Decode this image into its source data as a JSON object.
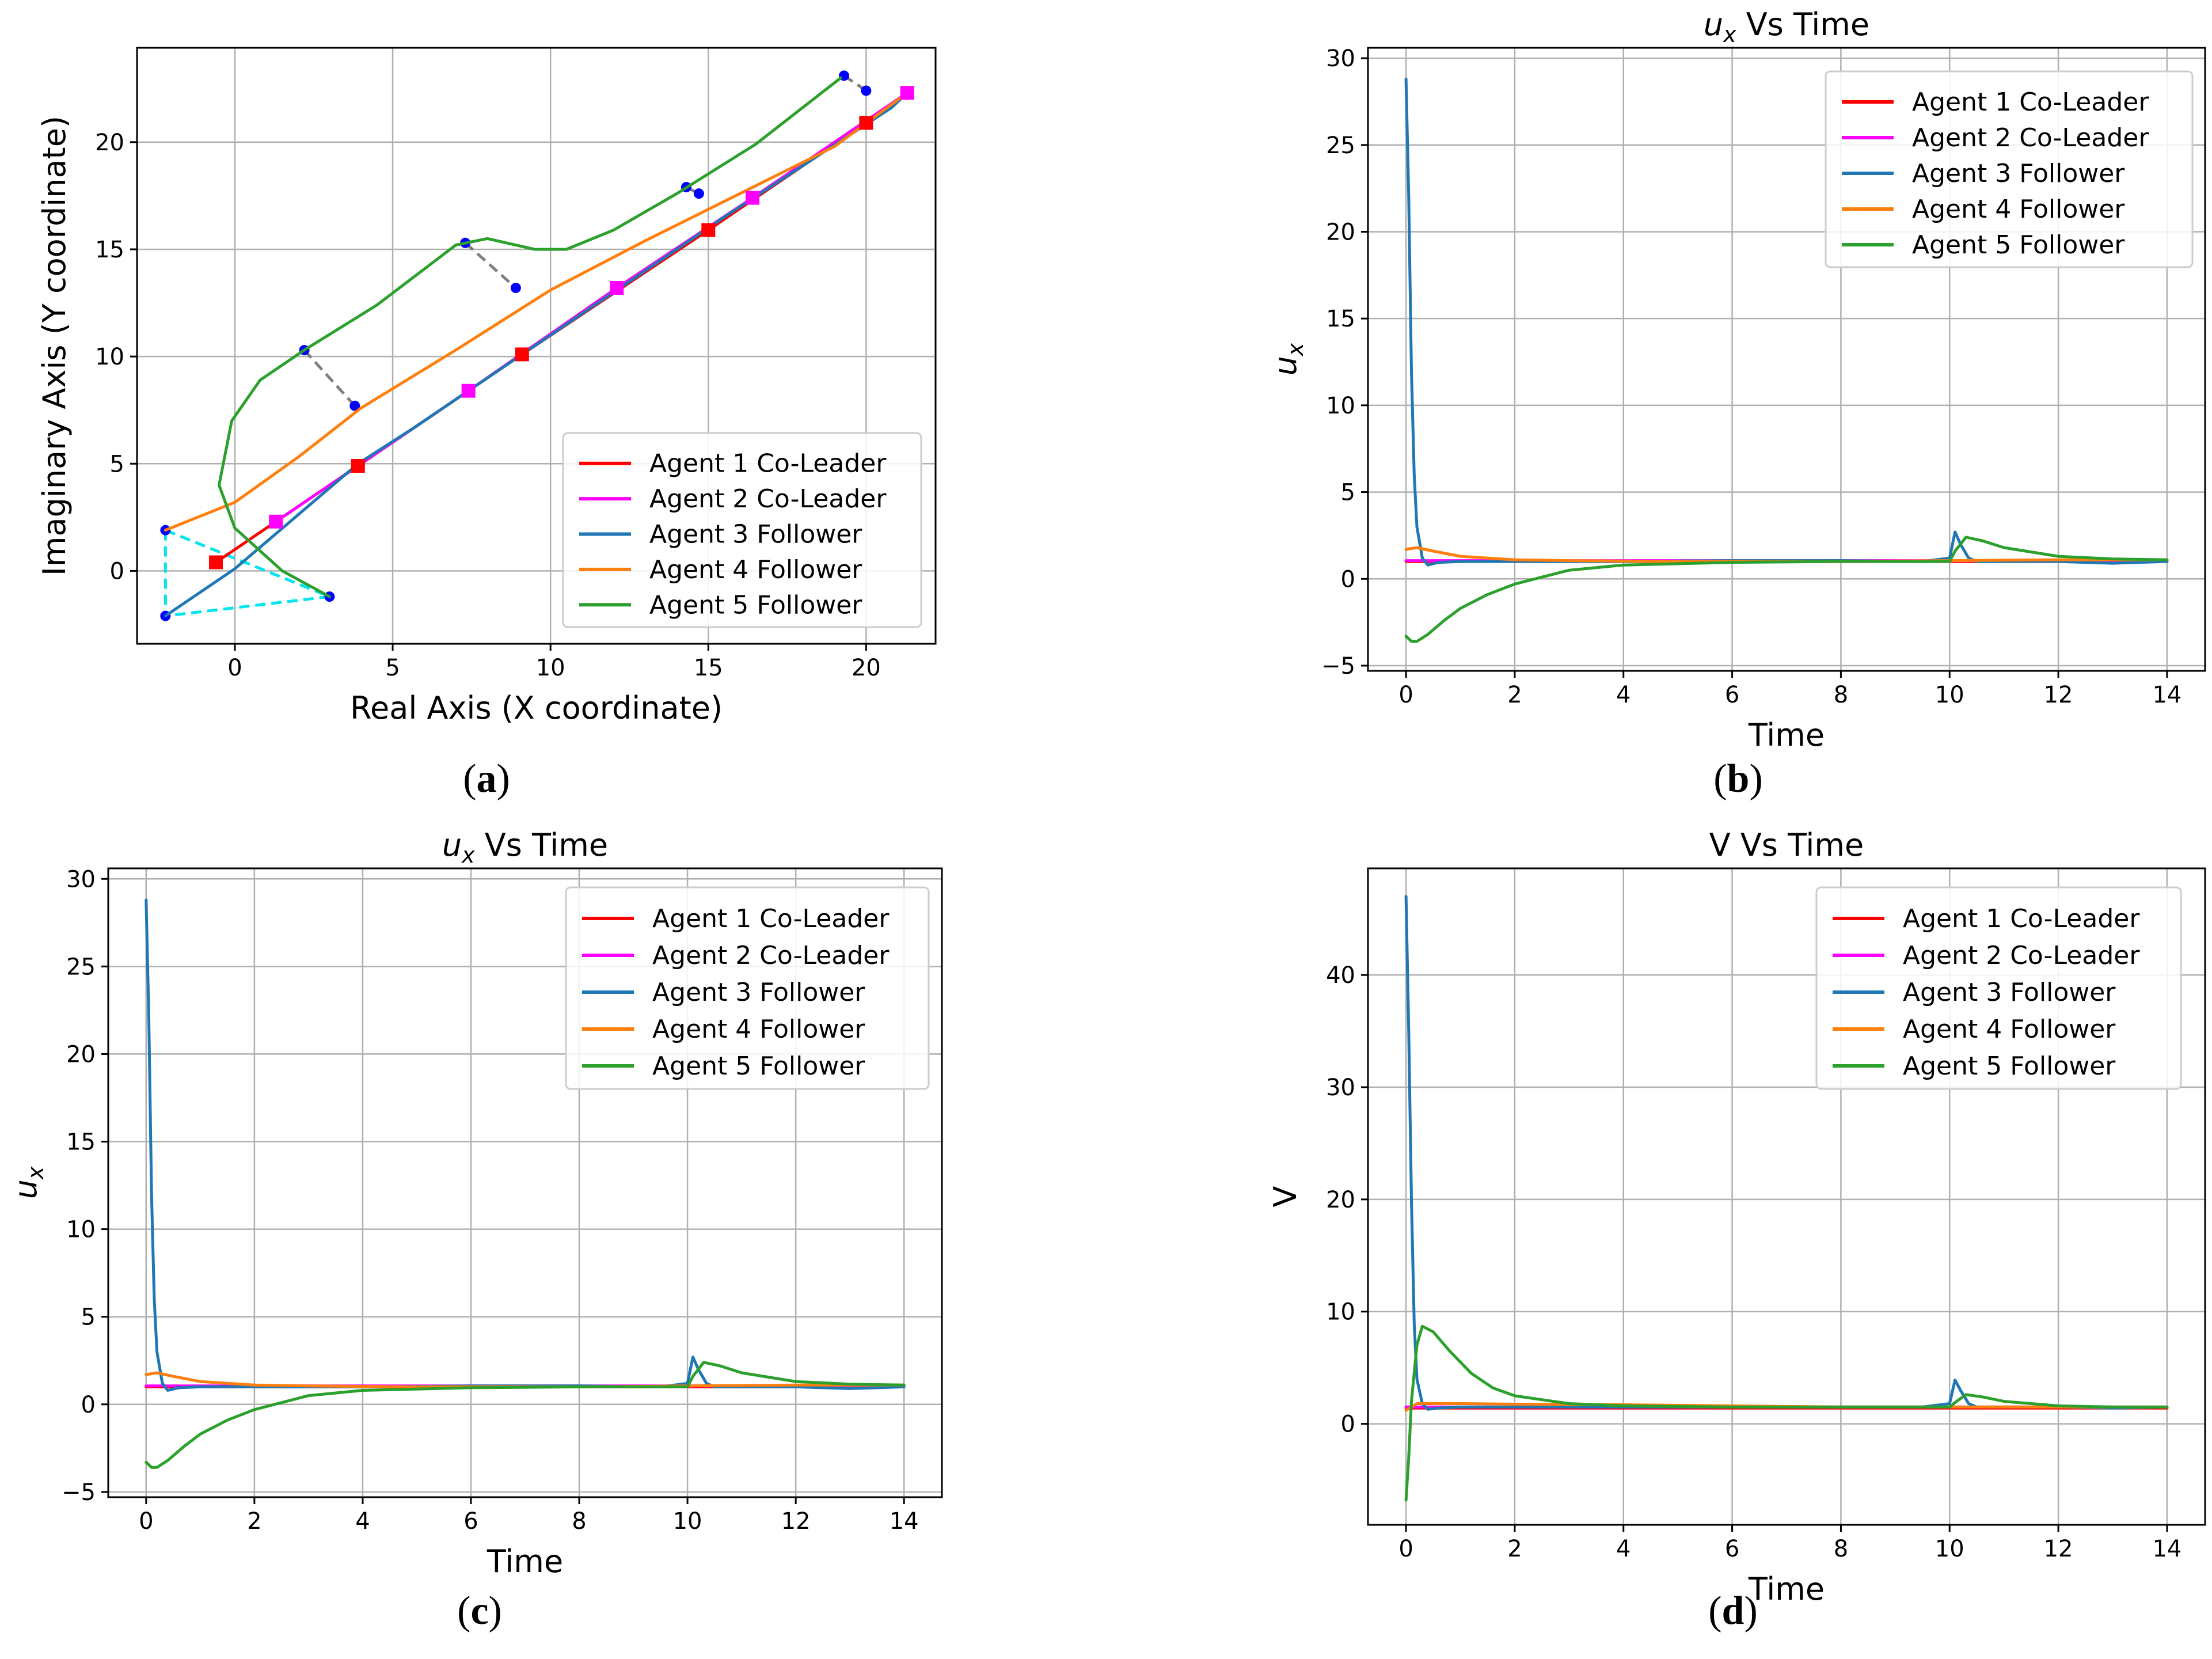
{
  "chart_data": [
    {
      "id": "a",
      "type": "line",
      "caption": "a",
      "title": "",
      "xlabel": "Real Axis (X coordinate)",
      "ylabel": "Imaginary Axis (Y coordinate)",
      "xlim": [
        -3.1,
        22.2
      ],
      "ylim": [
        -3.4,
        24.4
      ],
      "xticks": [
        0,
        5,
        10,
        15,
        20
      ],
      "yticks": [
        0,
        5,
        10,
        15,
        20
      ],
      "legend_position": "lower-right",
      "grid": true,
      "series": [
        {
          "name": "Agent 1 Co-Leader",
          "color": "#ff0000",
          "x": [
            -0.6,
            3.9,
            9.1,
            15.0,
            20.0
          ],
          "y": [
            0.4,
            4.9,
            10.1,
            15.9,
            20.9
          ]
        },
        {
          "name": "Agent 2 Co-Leader",
          "color": "#ff00ff",
          "x": [
            1.3,
            7.4,
            12.1,
            16.4,
            21.3
          ],
          "y": [
            2.3,
            8.4,
            13.2,
            17.4,
            22.3
          ]
        },
        {
          "name": "Agent 3 Follower",
          "color": "#1f77b4",
          "x": [
            -2.2,
            0,
            3.9,
            5.7,
            10.6,
            15.6,
            20.8,
            21.3
          ],
          "y": [
            -2.1,
            0.1,
            5.0,
            6.7,
            11.6,
            16.6,
            21.6,
            22.3
          ]
        },
        {
          "name": "Agent 4 Follower",
          "color": "#ff7f0e",
          "x": [
            -2.2,
            0,
            2.0,
            4.0,
            7.0,
            10.0,
            13.0,
            16.0,
            19.0,
            21.3
          ],
          "y": [
            1.9,
            3.2,
            5.3,
            7.6,
            10.3,
            13.1,
            15.4,
            17.6,
            19.8,
            22.3
          ]
        },
        {
          "name": "Agent 5 Follower",
          "color": "#2ca02c",
          "x": [
            3.0,
            1.5,
            0.0,
            -0.5,
            -0.1,
            0.8,
            2.2,
            4.5,
            7.0,
            8.0,
            9.5,
            10.5,
            12.0,
            14.0,
            16.5,
            19.2
          ],
          "y": [
            -1.2,
            0.0,
            2.0,
            4.0,
            7.0,
            8.9,
            10.3,
            12.4,
            15.2,
            15.5,
            15.0,
            15.0,
            15.9,
            17.6,
            19.9,
            23.0
          ]
        }
      ],
      "agents_positions": [
        {
          "label": "agent",
          "x": -2.2,
          "y": 1.9
        },
        {
          "label": "agent",
          "x": 3.0,
          "y": -1.2
        },
        {
          "label": "agent",
          "x": -2.2,
          "y": -2.1
        },
        {
          "label": "agent",
          "x": 2.2,
          "y": 10.3
        },
        {
          "label": "agent",
          "x": 3.8,
          "y": 7.7
        },
        {
          "label": "agent",
          "x": 7.3,
          "y": 15.3
        },
        {
          "label": "agent",
          "x": 8.9,
          "y": 13.2
        },
        {
          "label": "agent",
          "x": 14.3,
          "y": 17.9
        },
        {
          "label": "agent",
          "x": 14.7,
          "y": 17.6
        },
        {
          "label": "agent",
          "x": 19.3,
          "y": 23.1
        },
        {
          "label": "agent",
          "x": 20.0,
          "y": 22.4
        }
      ]
    },
    {
      "id": "b",
      "type": "line",
      "caption": "b",
      "title_sym": "u",
      "title_sub": "x",
      "title_rest": " Vs Time",
      "xlabel": "Time",
      "ylabel_sym": "u",
      "ylabel_sub": "x",
      "xlim": [
        -0.7,
        14.7
      ],
      "ylim": [
        -5.3,
        30.6
      ],
      "xticks": [
        0,
        2,
        4,
        6,
        8,
        10,
        12,
        14
      ],
      "yticks": [
        -5,
        0,
        5,
        10,
        15,
        20,
        25,
        30
      ],
      "legend_position": "top-right",
      "grid": true,
      "series": [
        {
          "name": "Agent 1 Co-Leader",
          "color": "#ff0000",
          "x": [
            0,
            14
          ],
          "y": [
            1.0,
            1.0
          ]
        },
        {
          "name": "Agent 2 Co-Leader",
          "color": "#ff00ff",
          "x": [
            0,
            14
          ],
          "y": [
            1.05,
            1.05
          ]
        },
        {
          "name": "Agent 3 Follower",
          "color": "#1f77b4",
          "x": [
            0,
            0.05,
            0.1,
            0.15,
            0.2,
            0.3,
            0.4,
            0.6,
            1,
            4,
            6,
            8,
            9.5,
            10.0,
            10.1,
            10.2,
            10.35,
            10.5,
            11,
            12,
            13,
            14
          ],
          "y": [
            28.8,
            22,
            12,
            6,
            3,
            1.2,
            0.8,
            0.95,
            1.0,
            1.0,
            1.05,
            1.05,
            1.0,
            1.2,
            2.7,
            2.0,
            1.2,
            1.0,
            1.0,
            1.0,
            0.9,
            1.0
          ]
        },
        {
          "name": "Agent 4 Follower",
          "color": "#ff7f0e",
          "x": [
            0,
            0.2,
            0.5,
            1,
            2,
            3,
            5,
            8,
            10,
            12,
            14
          ],
          "y": [
            1.7,
            1.8,
            1.6,
            1.3,
            1.1,
            1.05,
            1.0,
            1.0,
            1.05,
            1.1,
            1.1
          ]
        },
        {
          "name": "Agent 5 Follower",
          "color": "#2ca02c",
          "x": [
            0,
            0.1,
            0.2,
            0.4,
            0.7,
            1,
            1.5,
            2,
            3,
            4,
            6,
            8,
            10,
            10.1,
            10.3,
            10.6,
            11,
            12,
            13,
            14
          ],
          "y": [
            -3.3,
            -3.6,
            -3.6,
            -3.2,
            -2.4,
            -1.7,
            -0.9,
            -0.3,
            0.5,
            0.8,
            0.95,
            1.0,
            1.0,
            1.6,
            2.4,
            2.2,
            1.8,
            1.3,
            1.15,
            1.1
          ]
        }
      ]
    },
    {
      "id": "c",
      "type": "line",
      "caption": "c",
      "title_sym": "u",
      "title_sub": "x",
      "title_rest": " Vs Time",
      "xlabel": "Time",
      "ylabel_sym": "u",
      "ylabel_sub": "x",
      "xlim": [
        -0.7,
        14.7
      ],
      "ylim": [
        -5.3,
        30.6
      ],
      "xticks": [
        0,
        2,
        4,
        6,
        8,
        10,
        12,
        14
      ],
      "yticks": [
        -5,
        0,
        5,
        10,
        15,
        20,
        25,
        30
      ],
      "legend_position": "top-right",
      "grid": true,
      "series": [
        {
          "name": "Agent 1 Co-Leader",
          "color": "#ff0000",
          "x": [
            0,
            14
          ],
          "y": [
            1.0,
            1.0
          ]
        },
        {
          "name": "Agent 2 Co-Leader",
          "color": "#ff00ff",
          "x": [
            0,
            14
          ],
          "y": [
            1.05,
            1.05
          ]
        },
        {
          "name": "Agent 3 Follower",
          "color": "#1f77b4",
          "x": [
            0,
            0.05,
            0.1,
            0.15,
            0.2,
            0.3,
            0.4,
            0.6,
            1,
            4,
            6,
            8,
            9.5,
            10.0,
            10.1,
            10.2,
            10.35,
            10.5,
            11,
            12,
            13,
            14
          ],
          "y": [
            28.8,
            22,
            12,
            6,
            3,
            1.2,
            0.8,
            0.95,
            1.0,
            1.0,
            1.05,
            1.05,
            1.0,
            1.2,
            2.7,
            2.0,
            1.2,
            1.0,
            1.0,
            1.0,
            0.9,
            1.0
          ]
        },
        {
          "name": "Agent 4 Follower",
          "color": "#ff7f0e",
          "x": [
            0,
            0.2,
            0.5,
            1,
            2,
            3,
            5,
            8,
            10,
            12,
            14
          ],
          "y": [
            1.7,
            1.8,
            1.6,
            1.3,
            1.1,
            1.05,
            1.0,
            1.0,
            1.05,
            1.1,
            1.1
          ]
        },
        {
          "name": "Agent 5 Follower",
          "color": "#2ca02c",
          "x": [
            0,
            0.1,
            0.2,
            0.4,
            0.7,
            1,
            1.5,
            2,
            3,
            4,
            6,
            8,
            10,
            10.1,
            10.3,
            10.6,
            11,
            12,
            13,
            14
          ],
          "y": [
            -3.3,
            -3.6,
            -3.6,
            -3.2,
            -2.4,
            -1.7,
            -0.9,
            -0.3,
            0.5,
            0.8,
            0.95,
            1.0,
            1.0,
            1.6,
            2.4,
            2.2,
            1.8,
            1.3,
            1.15,
            1.1
          ]
        }
      ]
    },
    {
      "id": "d",
      "type": "line",
      "caption": "d",
      "title": "V Vs Time",
      "xlabel": "Time",
      "ylabel": "V",
      "xlim": [
        -0.7,
        14.7
      ],
      "ylim": [
        -9.0,
        49.5
      ],
      "xticks": [
        0,
        2,
        4,
        6,
        8,
        10,
        12,
        14
      ],
      "yticks": [
        0,
        10,
        20,
        30,
        40
      ],
      "legend_position": "top-right",
      "grid": true,
      "series": [
        {
          "name": "Agent 1 Co-Leader",
          "color": "#ff0000",
          "x": [
            0,
            14
          ],
          "y": [
            1.4,
            1.4
          ]
        },
        {
          "name": "Agent 2 Co-Leader",
          "color": "#ff00ff",
          "x": [
            0,
            14
          ],
          "y": [
            1.5,
            1.5
          ]
        },
        {
          "name": "Agent 3 Follower",
          "color": "#1f77b4",
          "x": [
            0,
            0.05,
            0.1,
            0.15,
            0.2,
            0.3,
            0.4,
            0.6,
            1,
            4,
            6,
            8,
            9.5,
            10.0,
            10.1,
            10.2,
            10.35,
            10.5,
            11,
            12,
            13,
            14
          ],
          "y": [
            47,
            35,
            20,
            9,
            4,
            1.8,
            1.3,
            1.4,
            1.5,
            1.5,
            1.5,
            1.5,
            1.5,
            1.8,
            3.9,
            3.0,
            1.8,
            1.5,
            1.5,
            1.5,
            1.4,
            1.5
          ]
        },
        {
          "name": "Agent 4 Follower",
          "color": "#ff7f0e",
          "x": [
            0,
            0.2,
            0.5,
            1,
            2,
            4,
            6,
            8,
            10,
            12,
            14
          ],
          "y": [
            1.2,
            1.8,
            1.8,
            1.8,
            1.75,
            1.7,
            1.6,
            1.5,
            1.5,
            1.5,
            1.5
          ]
        },
        {
          "name": "Agent 5 Follower",
          "color": "#2ca02c",
          "x": [
            0,
            0.05,
            0.1,
            0.2,
            0.3,
            0.5,
            0.8,
            1.2,
            1.6,
            2,
            3,
            4,
            6,
            8,
            10,
            10.1,
            10.3,
            10.6,
            11,
            12,
            13,
            14
          ],
          "y": [
            -6.8,
            -3,
            2,
            7,
            8.7,
            8.2,
            6.5,
            4.5,
            3.2,
            2.5,
            1.8,
            1.6,
            1.5,
            1.5,
            1.5,
            1.9,
            2.6,
            2.4,
            2.0,
            1.6,
            1.5,
            1.5
          ]
        }
      ]
    }
  ]
}
